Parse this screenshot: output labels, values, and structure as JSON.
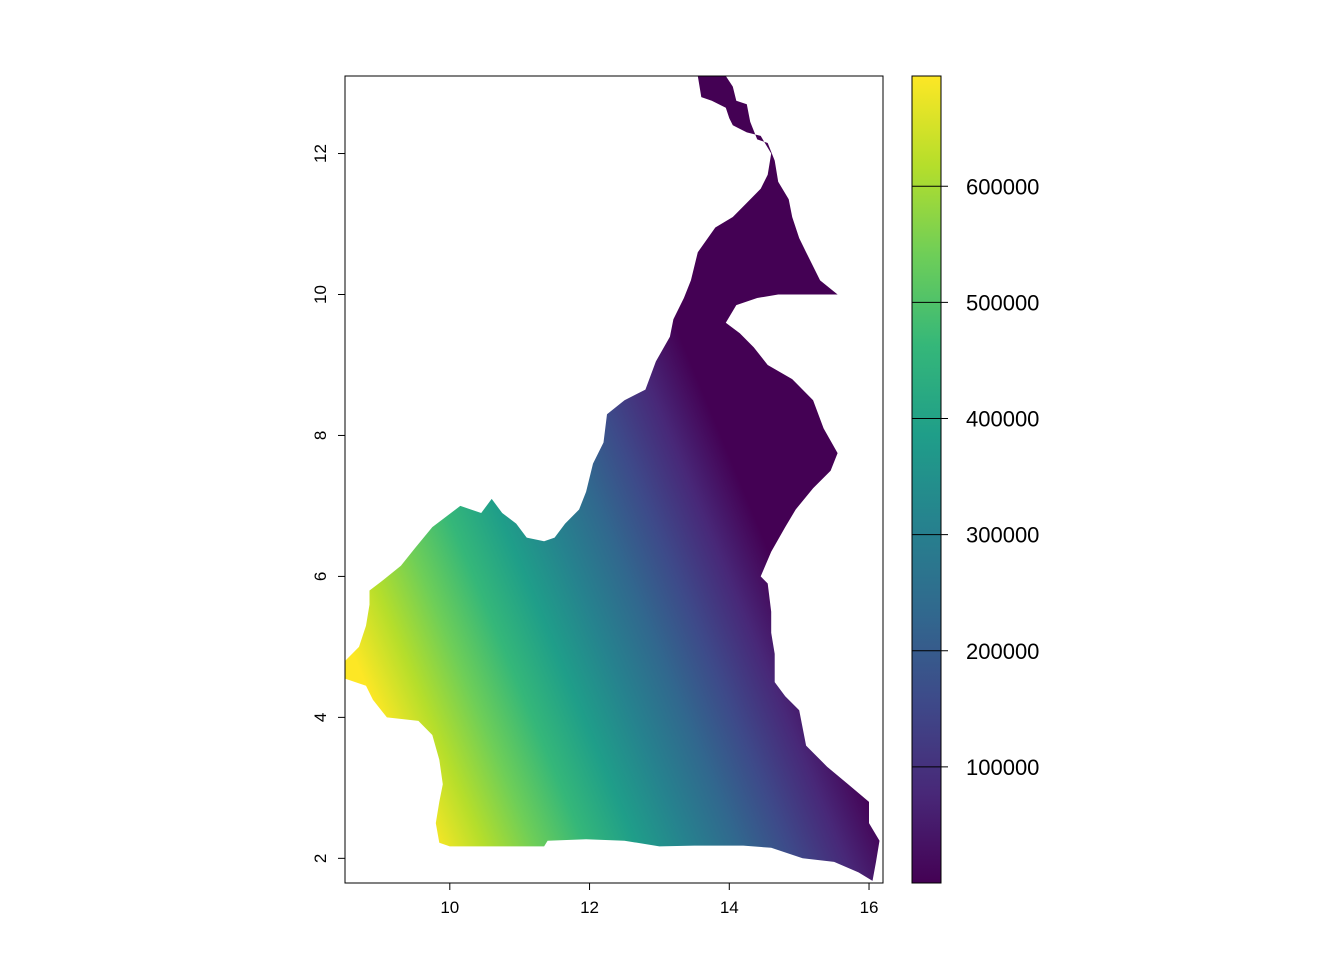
{
  "chart_data": {
    "type": "heatmap",
    "title": "",
    "xlabel": "",
    "ylabel": "",
    "xlim": [
      8.5,
      16.2
    ],
    "ylim": [
      1.65,
      13.1
    ],
    "x_ticks": [
      {
        "value": 10,
        "label": "10"
      },
      {
        "value": 12,
        "label": "12"
      },
      {
        "value": 14,
        "label": "14"
      },
      {
        "value": 16,
        "label": "16"
      }
    ],
    "y_ticks": [
      {
        "value": 2,
        "label": "2"
      },
      {
        "value": 4,
        "label": "4"
      },
      {
        "value": 6,
        "label": "6"
      },
      {
        "value": 8,
        "label": "8"
      },
      {
        "value": 10,
        "label": "10"
      },
      {
        "value": 12,
        "label": "12"
      }
    ],
    "colorbar": {
      "palette": "viridis",
      "range": [
        0,
        695000
      ],
      "ticks": [
        {
          "value": 100000,
          "label": "100000"
        },
        {
          "value": 200000,
          "label": "200000"
        },
        {
          "value": 300000,
          "label": "300000"
        },
        {
          "value": 400000,
          "label": "400000"
        },
        {
          "value": 500000,
          "label": "500000"
        },
        {
          "value": 600000,
          "label": "600000"
        }
      ],
      "colors": [
        "#440154",
        "#482878",
        "#3e4989",
        "#31688e",
        "#26828e",
        "#1f9e89",
        "#35b779",
        "#6ece58",
        "#b5de2b",
        "#fde725"
      ]
    },
    "region_outline_lonlat": [
      [
        13.55,
        13.1
      ],
      [
        13.95,
        13.1
      ],
      [
        14.05,
        12.95
      ],
      [
        14.1,
        12.75
      ],
      [
        14.25,
        12.7
      ],
      [
        14.3,
        12.45
      ],
      [
        14.4,
        12.2
      ],
      [
        14.55,
        12.15
      ],
      [
        14.65,
        11.9
      ],
      [
        14.7,
        11.6
      ],
      [
        14.85,
        11.35
      ],
      [
        14.9,
        11.1
      ],
      [
        15.0,
        10.8
      ],
      [
        15.1,
        10.6
      ],
      [
        15.3,
        10.2
      ],
      [
        15.55,
        10.0
      ],
      [
        15.1,
        10.0
      ],
      [
        14.7,
        10.0
      ],
      [
        14.4,
        9.95
      ],
      [
        14.1,
        9.85
      ],
      [
        13.95,
        9.6
      ],
      [
        14.15,
        9.45
      ],
      [
        14.35,
        9.25
      ],
      [
        14.55,
        9.0
      ],
      [
        14.9,
        8.8
      ],
      [
        15.2,
        8.5
      ],
      [
        15.35,
        8.1
      ],
      [
        15.55,
        7.75
      ],
      [
        15.45,
        7.5
      ],
      [
        15.2,
        7.25
      ],
      [
        14.95,
        6.95
      ],
      [
        14.8,
        6.7
      ],
      [
        14.6,
        6.35
      ],
      [
        14.45,
        6.0
      ],
      [
        14.55,
        5.9
      ],
      [
        14.6,
        5.5
      ],
      [
        14.6,
        5.2
      ],
      [
        14.65,
        4.9
      ],
      [
        14.65,
        4.5
      ],
      [
        14.8,
        4.3
      ],
      [
        15.0,
        4.1
      ],
      [
        15.1,
        3.6
      ],
      [
        15.4,
        3.3
      ],
      [
        15.7,
        3.05
      ],
      [
        16.0,
        2.8
      ],
      [
        16.0,
        2.5
      ],
      [
        16.15,
        2.25
      ],
      [
        16.1,
        1.95
      ],
      [
        16.05,
        1.68
      ],
      [
        15.85,
        1.8
      ],
      [
        15.5,
        1.95
      ],
      [
        15.05,
        2.0
      ],
      [
        14.6,
        2.15
      ],
      [
        14.2,
        2.18
      ],
      [
        13.5,
        2.18
      ],
      [
        13.0,
        2.17
      ],
      [
        12.5,
        2.25
      ],
      [
        11.95,
        2.27
      ],
      [
        11.4,
        2.25
      ],
      [
        11.35,
        2.17
      ],
      [
        10.5,
        2.17
      ],
      [
        10.0,
        2.17
      ],
      [
        9.85,
        2.22
      ],
      [
        9.8,
        2.5
      ],
      [
        9.85,
        2.8
      ],
      [
        9.9,
        3.05
      ],
      [
        9.85,
        3.4
      ],
      [
        9.75,
        3.75
      ],
      [
        9.55,
        3.95
      ],
      [
        9.1,
        4.0
      ],
      [
        8.9,
        4.25
      ],
      [
        8.8,
        4.45
      ],
      [
        8.5,
        4.55
      ],
      [
        8.5,
        4.8
      ],
      [
        8.7,
        5.0
      ],
      [
        8.8,
        5.3
      ],
      [
        8.85,
        5.6
      ],
      [
        8.85,
        5.8
      ],
      [
        9.05,
        5.95
      ],
      [
        9.3,
        6.15
      ],
      [
        9.5,
        6.4
      ],
      [
        9.75,
        6.7
      ],
      [
        10.15,
        7.0
      ],
      [
        10.45,
        6.9
      ],
      [
        10.6,
        7.1
      ],
      [
        10.75,
        6.9
      ],
      [
        10.95,
        6.75
      ],
      [
        11.1,
        6.55
      ],
      [
        11.35,
        6.5
      ],
      [
        11.5,
        6.55
      ],
      [
        11.65,
        6.75
      ],
      [
        11.85,
        6.95
      ],
      [
        11.95,
        7.2
      ],
      [
        12.05,
        7.6
      ],
      [
        12.2,
        7.9
      ],
      [
        12.25,
        8.3
      ],
      [
        12.5,
        8.5
      ],
      [
        12.8,
        8.65
      ],
      [
        12.95,
        9.05
      ],
      [
        13.15,
        9.4
      ],
      [
        13.2,
        9.65
      ],
      [
        13.35,
        9.95
      ],
      [
        13.45,
        10.2
      ],
      [
        13.55,
        10.6
      ],
      [
        13.8,
        10.95
      ],
      [
        14.05,
        11.1
      ],
      [
        14.25,
        11.3
      ],
      [
        14.45,
        11.5
      ],
      [
        14.55,
        11.7
      ],
      [
        14.6,
        12.0
      ],
      [
        14.45,
        12.25
      ],
      [
        14.25,
        12.3
      ],
      [
        14.05,
        12.4
      ],
      [
        14.0,
        12.5
      ],
      [
        13.95,
        12.65
      ],
      [
        13.75,
        12.75
      ],
      [
        13.6,
        12.8
      ],
      [
        13.55,
        13.1
      ]
    ],
    "value_gradient": {
      "description_values": [
        {
          "lon": 8.7,
          "lat": 4.7,
          "value": 690000
        },
        {
          "lon": 14.3,
          "lat": 7.0,
          "value": 10000
        }
      ]
    }
  }
}
